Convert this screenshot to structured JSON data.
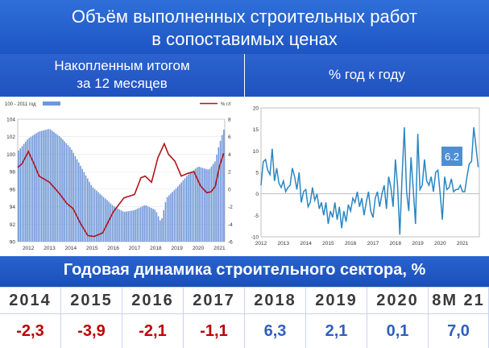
{
  "header": {
    "title_line1": "Объём выполненных строительных работ",
    "title_line2": "в сопоставимых ценах"
  },
  "left_panel": {
    "title_line1": "Накопленным итогом",
    "title_line2": "за 12 месяцев"
  },
  "right_panel": {
    "title_line1": "% год к году"
  },
  "band": {
    "title": "Годовая динамика строительного сектора, %"
  },
  "table": {
    "years": [
      "2014",
      "2015",
      "2016",
      "2017",
      "2018",
      "2019",
      "2020",
      "8M 21"
    ],
    "values": [
      "-2,3",
      "-3,9",
      "-2,1",
      "-1,1",
      "6,3",
      "2,1",
      "0,1",
      "7,0"
    ],
    "value_colors": [
      "#c00000",
      "#c00000",
      "#c00000",
      "#c00000",
      "#2e5fbf",
      "#2e5fbf",
      "#2e5fbf",
      "#2e5fbf"
    ]
  },
  "colors": {
    "bars": "#6f97d8",
    "line": "#b0151a",
    "yoy_line": "#2b86c2",
    "callout": "#4d8fd1"
  },
  "chart_data": [
    {
      "type": "bar",
      "legend": {
        "bars": "100 - 2011 год",
        "line": "% г/г",
        "placement": "top"
      },
      "x_tick_labels": [
        "2012",
        "2013",
        "2014",
        "2015",
        "2016",
        "2017",
        "2018",
        "2019",
        "2020",
        "2021"
      ],
      "x_range": [
        2012.0,
        2021.75
      ],
      "y_left": {
        "ticks": [
          "90",
          "92",
          "94",
          "96",
          "98",
          "100",
          "102",
          "104"
        ],
        "range": [
          90,
          104
        ]
      },
      "y_right": {
        "ticks": [
          "-6",
          "-4",
          "-2",
          "0",
          "2",
          "4",
          "6",
          "8"
        ],
        "range": [
          -6,
          8
        ]
      },
      "bars_index_2011_100": {
        "x": [
          2012.0,
          2012.5,
          2013.0,
          2013.5,
          2014.0,
          2014.5,
          2015.0,
          2015.5,
          2016.0,
          2016.5,
          2017.0,
          2017.5,
          2018.0,
          2018.5,
          2018.75,
          2019.0,
          2019.5,
          2020.0,
          2020.5,
          2021.0,
          2021.3,
          2021.5,
          2021.7
        ],
        "y": [
          100.3,
          101.8,
          102.6,
          102.9,
          102.0,
          100.7,
          98.5,
          96.3,
          95.2,
          94.1,
          93.4,
          93.6,
          94.2,
          93.6,
          92.2,
          95.0,
          96.2,
          97.6,
          98.6,
          98.2,
          99.2,
          101.2,
          102.8
        ]
      },
      "line_pct_yoy": {
        "x": [
          2012.0,
          2012.2,
          2012.5,
          2012.75,
          2013.0,
          2013.5,
          2014.0,
          2014.3,
          2014.6,
          2015.0,
          2015.3,
          2015.6,
          2016.0,
          2016.5,
          2017.0,
          2017.5,
          2017.8,
          2018.0,
          2018.3,
          2018.6,
          2018.9,
          2019.1,
          2019.4,
          2019.7,
          2020.0,
          2020.3,
          2020.6,
          2020.9,
          2021.1,
          2021.3,
          2021.5,
          2021.7
        ],
        "y": [
          2.5,
          2.9,
          4.3,
          3.0,
          1.5,
          0.8,
          -0.6,
          -1.6,
          -2.2,
          -4.1,
          -5.3,
          -5.4,
          -5.0,
          -2.6,
          -1.0,
          -0.6,
          1.3,
          1.5,
          0.8,
          3.6,
          5.2,
          4.0,
          3.2,
          1.5,
          1.8,
          2.0,
          0.4,
          -0.4,
          -0.3,
          0.3,
          2.6,
          4.1
        ]
      }
    },
    {
      "type": "line",
      "x_tick_labels": [
        "2012",
        "2013",
        "2014",
        "2015",
        "2016",
        "2017",
        "2018",
        "2019",
        "2020",
        "2021"
      ],
      "x_range": [
        2012.0,
        2021.75
      ],
      "y_ticks": [
        "-10",
        "-5",
        "0",
        "5",
        "10",
        "15",
        "20"
      ],
      "y_range": [
        -10,
        20
      ],
      "callout": "6.2",
      "series": [
        {
          "x": [
            2012.0,
            2012.1,
            2012.2,
            2012.3,
            2012.4,
            2012.5,
            2012.6,
            2012.7,
            2012.8,
            2012.9,
            2013.0,
            2013.1,
            2013.2,
            2013.3,
            2013.4,
            2013.5,
            2013.6,
            2013.7,
            2013.8,
            2013.9,
            2014.0,
            2014.1,
            2014.2,
            2014.3,
            2014.4,
            2014.5,
            2014.6,
            2014.7,
            2014.8,
            2014.9,
            2015.0,
            2015.1,
            2015.2,
            2015.3,
            2015.4,
            2015.5,
            2015.6,
            2015.7,
            2015.8,
            2015.9,
            2016.0,
            2016.1,
            2016.2,
            2016.3,
            2016.4,
            2016.5,
            2016.6,
            2016.7,
            2016.8,
            2016.9,
            2017.0,
            2017.1,
            2017.2,
            2017.3,
            2017.4,
            2017.5,
            2017.6,
            2017.7,
            2017.8,
            2017.9,
            2018.0,
            2018.1,
            2018.2,
            2018.3,
            2018.4,
            2018.5,
            2018.6,
            2018.7,
            2018.8,
            2018.9,
            2019.0,
            2019.1,
            2019.2,
            2019.3,
            2019.4,
            2019.5,
            2019.6,
            2019.7,
            2019.8,
            2019.9,
            2020.0,
            2020.1,
            2020.2,
            2020.3,
            2020.4,
            2020.5,
            2020.6,
            2020.7,
            2020.8,
            2020.9,
            2021.0,
            2021.1,
            2021.2,
            2021.3,
            2021.4,
            2021.5,
            2021.6,
            2021.7
          ],
          "y": [
            2.0,
            7.5,
            8.0,
            5.5,
            4.5,
            10.5,
            3.0,
            6.0,
            2.5,
            1.5,
            3.0,
            0.5,
            1.5,
            2.0,
            6.0,
            4.0,
            1.0,
            5.0,
            -2.0,
            0.5,
            1.0,
            -3.0,
            -2.0,
            1.5,
            -1.5,
            0.0,
            -3.5,
            -2.0,
            -5.0,
            -2.0,
            -7.0,
            -4.0,
            -5.5,
            -2.0,
            -6.0,
            -3.0,
            -8.0,
            -4.0,
            -6.5,
            -2.5,
            -4.0,
            -1.0,
            -2.0,
            0.5,
            -3.0,
            -1.0,
            -5.0,
            -2.0,
            0.5,
            -4.0,
            -5.5,
            -1.0,
            0.5,
            -3.0,
            0.0,
            2.0,
            -3.5,
            4.0,
            1.5,
            -3.0,
            8.0,
            2.0,
            -9.5,
            4.0,
            15.5,
            0.5,
            -4.0,
            8.5,
            1.0,
            -7.0,
            14.0,
            1.0,
            2.0,
            8.0,
            3.0,
            2.0,
            4.0,
            0.5,
            5.0,
            5.5,
            0.0,
            -6.0,
            4.0,
            1.0,
            1.5,
            3.5,
            0.5,
            1.0,
            1.0,
            2.0,
            0.5,
            0.5,
            4.0,
            7.0,
            7.5,
            15.5,
            11.0,
            6.2
          ]
        }
      ]
    }
  ]
}
